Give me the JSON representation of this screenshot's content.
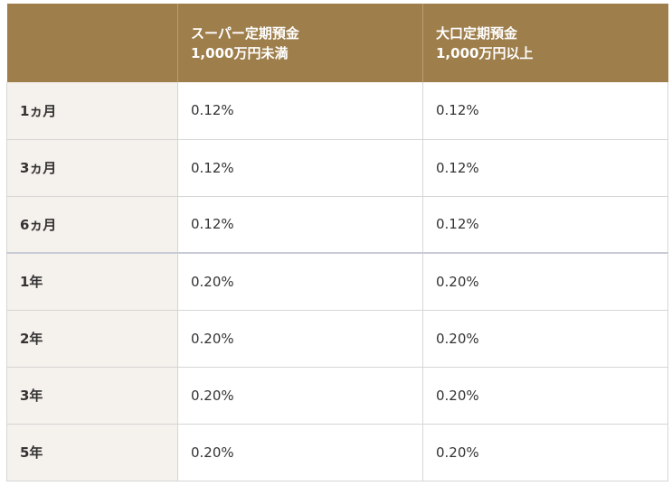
{
  "table": {
    "headers": [
      {
        "line1": "",
        "line2": ""
      },
      {
        "line1": "スーパー定期預金",
        "line2": "1,000万円未満"
      },
      {
        "line1": "大口定期預金",
        "line2": "1,000万円以上"
      }
    ],
    "rows": [
      {
        "term": "1ヵ月",
        "super": "0.12%",
        "large": "0.12%"
      },
      {
        "term": "3ヵ月",
        "super": "0.12%",
        "large": "0.12%"
      },
      {
        "term": "6ヵ月",
        "super": "0.12%",
        "large": "0.12%"
      },
      {
        "term": "1年",
        "super": "0.20%",
        "large": "0.20%"
      },
      {
        "term": "2年",
        "super": "0.20%",
        "large": "0.20%"
      },
      {
        "term": "3年",
        "super": "0.20%",
        "large": "0.20%"
      },
      {
        "term": "5年",
        "super": "0.20%",
        "large": "0.20%"
      }
    ]
  },
  "colors": {
    "header_bg": "#9e7e4b",
    "term_bg": "#f5f1ec",
    "border": "#d6d6d6"
  }
}
